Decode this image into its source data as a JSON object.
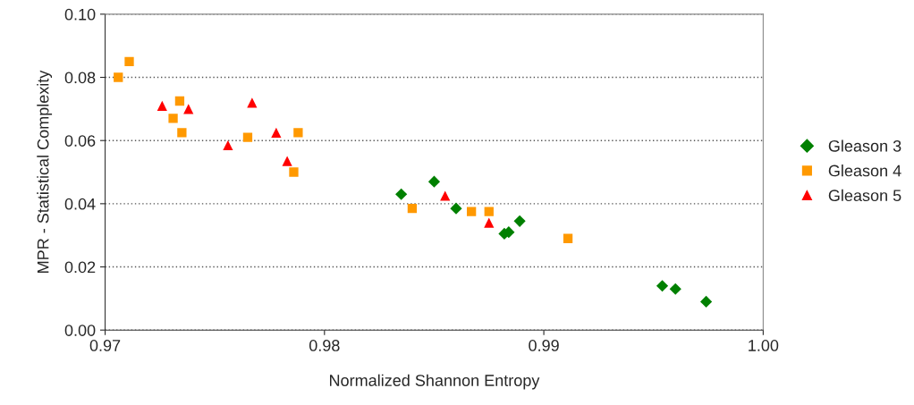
{
  "chart_data": {
    "type": "scatter",
    "xlabel": "Normalized Shannon Entropy",
    "ylabel": "MPR - Statistical Complexity",
    "series": [
      {
        "name": "Gleason 3",
        "color": "#008000",
        "marker": "diamond",
        "x": [
          0.9835,
          0.985,
          0.986,
          0.9882,
          0.9884,
          0.9889,
          0.9954,
          0.996,
          0.9974
        ],
        "values": [
          0.043,
          0.047,
          0.0385,
          0.0305,
          0.031,
          0.0345,
          0.014,
          0.013,
          0.009
        ]
      },
      {
        "name": "Gleason 4",
        "color": "#ff9900",
        "marker": "square",
        "x": [
          0.9706,
          0.9711,
          0.9731,
          0.9734,
          0.9735,
          0.9765,
          0.9788,
          0.9786,
          0.984,
          0.9867,
          0.9875,
          0.9911
        ],
        "values": [
          0.08,
          0.085,
          0.067,
          0.0725,
          0.0625,
          0.061,
          0.0625,
          0.05,
          0.0385,
          0.0375,
          0.0375,
          0.029
        ]
      },
      {
        "name": "Gleason 5",
        "color": "#ff0000",
        "marker": "triangle",
        "x": [
          0.9726,
          0.9738,
          0.9756,
          0.9767,
          0.9778,
          0.9783,
          0.9855,
          0.9875
        ],
        "values": [
          0.071,
          0.07,
          0.0585,
          0.072,
          0.0625,
          0.0535,
          0.0425,
          0.034
        ]
      }
    ],
    "xlim": [
      0.97,
      1.0
    ],
    "xticks": [
      0.97,
      0.98,
      0.99,
      {
        "value": 1.0,
        "label": "1.00"
      }
    ],
    "ylim": [
      0.0,
      0.1
    ],
    "yticks": [
      {
        "value": 0.0,
        "label": "0.00"
      },
      {
        "value": 0.02,
        "label": "0.02"
      },
      {
        "value": 0.04,
        "label": "0.04"
      },
      {
        "value": 0.06,
        "label": "0.06"
      },
      {
        "value": 0.08,
        "label": "0.08"
      },
      {
        "value": 0.1,
        "label": "0.10"
      }
    ],
    "grid": "y",
    "legend": "right"
  }
}
